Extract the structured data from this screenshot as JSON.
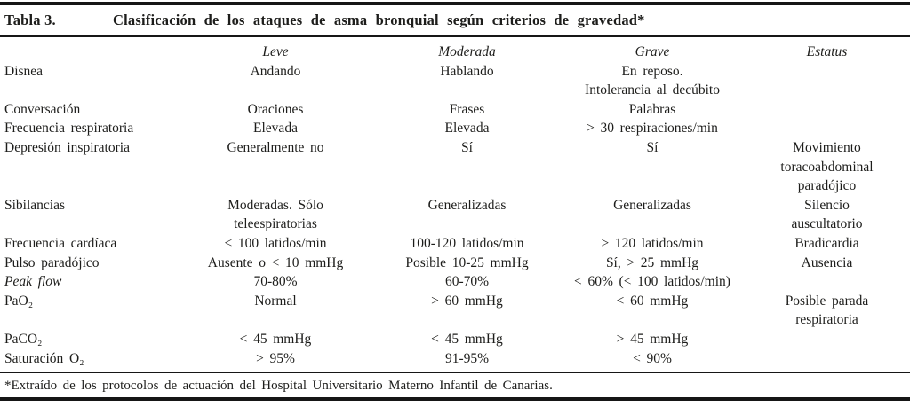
{
  "colors": {
    "ink": "#1d1d1b",
    "rule": "#161616",
    "background": "#ffffff"
  },
  "title": {
    "label": "Tabla 3.",
    "text": "Clasificación de los ataques de asma bronquial según criterios de gravedad*"
  },
  "table": {
    "columns": [
      "",
      "Leve",
      "Moderada",
      "Grave",
      "Estatus"
    ],
    "rows": [
      {
        "label": "Disnea",
        "cells": [
          [
            "Andando"
          ],
          [
            "Hablando"
          ],
          [
            "En reposo.",
            "Intolerancia al decúbito"
          ],
          []
        ]
      },
      {
        "label": "Conversación",
        "cells": [
          [
            "Oraciones"
          ],
          [
            "Frases"
          ],
          [
            "Palabras"
          ],
          []
        ]
      },
      {
        "label": "Frecuencia respiratoria",
        "cells": [
          [
            "Elevada"
          ],
          [
            "Elevada"
          ],
          [
            "> 30 respiraciones/min"
          ],
          []
        ]
      },
      {
        "label": "Depresión inspiratoria",
        "cells": [
          [
            "Generalmente no"
          ],
          [
            "Sí"
          ],
          [
            "Sí"
          ],
          [
            "Movimiento",
            "toracoabdominal",
            "paradójico"
          ]
        ]
      },
      {
        "label": "Sibilancias",
        "cells": [
          [
            "Moderadas. Sólo",
            "teleespiratorias"
          ],
          [
            "Generalizadas"
          ],
          [
            "Generalizadas"
          ],
          [
            "Silencio",
            "auscultatorio"
          ]
        ]
      },
      {
        "label": "Frecuencia cardíaca",
        "cells": [
          [
            "< 100 latidos/min"
          ],
          [
            "100-120 latidos/min"
          ],
          [
            "> 120 latidos/min"
          ],
          [
            "Bradicardia"
          ]
        ]
      },
      {
        "label": "Pulso paradójico",
        "cells": [
          [
            "Ausente o < 10 mmHg"
          ],
          [
            "Posible 10-25 mmHg"
          ],
          [
            "Sí, > 25 mmHg"
          ],
          [
            "Ausencia"
          ]
        ]
      },
      {
        "label": "Peak flow",
        "label_italic": true,
        "cells": [
          [
            "70-80%"
          ],
          [
            "60-70%"
          ],
          [
            "< 60% (< 100 latidos/min)"
          ],
          []
        ]
      },
      {
        "label": "PaO₂",
        "cells": [
          [
            "Normal"
          ],
          [
            "> 60 mmHg"
          ],
          [
            "< 60 mmHg"
          ],
          [
            "Posible parada",
            "respiratoria"
          ]
        ]
      },
      {
        "label": "PaCO₂",
        "cells": [
          [
            "< 45 mmHg"
          ],
          [
            "< 45 mmHg"
          ],
          [
            "> 45 mmHg"
          ],
          []
        ]
      },
      {
        "label": "Saturación O₂",
        "cells": [
          [
            "> 95%"
          ],
          [
            "91-95%"
          ],
          [
            "< 90%"
          ],
          []
        ]
      }
    ]
  },
  "footnote": "*Extraído de los protocolos de actuación del Hospital Universitario Materno Infantil de Canarias."
}
